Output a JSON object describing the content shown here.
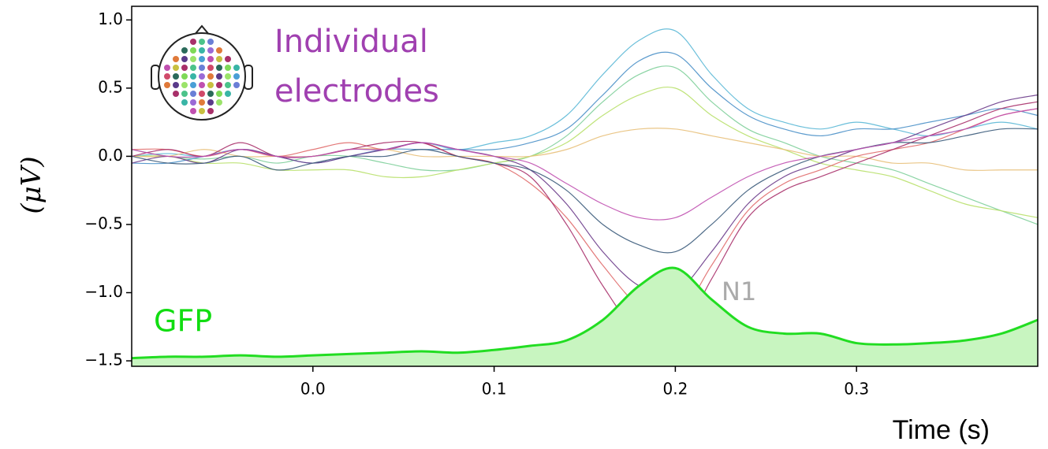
{
  "chart_data": {
    "type": "line",
    "ylabel": "(μV)",
    "xlabel": "Time (s)",
    "annotations": {
      "electrodes": [
        "Individual",
        "electrodes"
      ],
      "gfp": "GFP",
      "peak": "N1"
    },
    "xlim": [
      -0.1,
      0.4
    ],
    "ylim": [
      -1.54,
      1.1
    ],
    "xticks": [
      {
        "value": 0.0,
        "label": "0.0"
      },
      0.1,
      0.2,
      0.3
    ],
    "yticks": [
      {
        "value": -1.5,
        "label": "−1.5"
      },
      {
        "value": -1.0,
        "label": "−1.0"
      },
      {
        "value": -0.5,
        "label": "−0.5"
      },
      {
        "value": 0.0,
        "label": "0.0"
      },
      {
        "value": 0.5,
        "label": "0.5"
      },
      {
        "value": 1.0,
        "label": "1.0"
      }
    ],
    "x": [
      -0.1,
      -0.08,
      -0.06,
      -0.04,
      -0.02,
      0,
      0.02,
      0.04,
      0.06,
      0.08,
      0.1,
      0.12,
      0.14,
      0.16,
      0.18,
      0.2,
      0.22,
      0.24,
      0.26,
      0.28,
      0.3,
      0.32,
      0.34,
      0.36,
      0.38,
      0.4
    ],
    "series": [
      {
        "color": "#5bb8d6",
        "values": [
          0,
          0.02,
          0,
          0.05,
          0,
          0,
          0.05,
          0.05,
          0.1,
          0.05,
          0.1,
          0.15,
          0.3,
          0.6,
          0.85,
          0.92,
          0.6,
          0.35,
          0.25,
          0.2,
          0.25,
          0.2,
          0.15,
          0.2,
          0.25,
          0.2
        ]
      },
      {
        "color": "#7ecf9a",
        "values": [
          0.05,
          0,
          -0.02,
          0,
          -0.05,
          0,
          0,
          -0.05,
          -0.1,
          -0.1,
          -0.05,
          0,
          0.15,
          0.4,
          0.6,
          0.65,
          0.4,
          0.2,
          0.1,
          0,
          -0.05,
          -0.1,
          -0.2,
          -0.3,
          -0.4,
          -0.5
        ]
      },
      {
        "color": "#b8e06a",
        "values": [
          0,
          0,
          -0.05,
          -0.05,
          -0.1,
          -0.1,
          -0.1,
          -0.15,
          -0.15,
          -0.1,
          -0.05,
          0,
          0.1,
          0.3,
          0.45,
          0.5,
          0.3,
          0.15,
          0.05,
          -0.05,
          -0.1,
          -0.15,
          -0.25,
          -0.35,
          -0.4,
          -0.45
        ]
      },
      {
        "color": "#4a90c8",
        "values": [
          -0.05,
          -0.05,
          0,
          0.05,
          0,
          -0.05,
          0,
          0.05,
          0.05,
          0.05,
          0.05,
          0.1,
          0.2,
          0.45,
          0.7,
          0.75,
          0.5,
          0.3,
          0.2,
          0.15,
          0.2,
          0.2,
          0.25,
          0.3,
          0.35,
          0.3
        ]
      },
      {
        "color": "#e8c07a",
        "values": [
          0,
          0,
          0.05,
          0,
          0,
          0,
          0.05,
          0.05,
          0,
          0,
          0,
          0,
          0.05,
          0.15,
          0.2,
          0.2,
          0.15,
          0.1,
          0.05,
          0,
          0,
          -0.05,
          -0.05,
          -0.1,
          -0.1,
          -0.1
        ]
      },
      {
        "color": "#e06a6a",
        "values": [
          0.05,
          0.05,
          0,
          0.05,
          0,
          0.05,
          0.1,
          0.05,
          0.1,
          0,
          -0.05,
          -0.2,
          -0.45,
          -0.8,
          -1.1,
          -1.2,
          -0.8,
          -0.4,
          -0.2,
          -0.1,
          0,
          0.05,
          0.1,
          0.2,
          0.3,
          0.35
        ]
      },
      {
        "color": "#a8306a",
        "values": [
          0,
          0.05,
          0,
          0.1,
          0,
          0,
          0.05,
          0.1,
          0.1,
          0,
          -0.05,
          -0.15,
          -0.5,
          -0.95,
          -1.3,
          -1.35,
          -0.9,
          -0.45,
          -0.25,
          -0.15,
          -0.05,
          0.05,
          0.15,
          0.25,
          0.35,
          0.4
        ]
      },
      {
        "color": "#6a3a8a",
        "values": [
          -0.05,
          0,
          -0.05,
          0.05,
          0,
          -0.05,
          0,
          0.05,
          0.1,
          0.05,
          0,
          -0.1,
          -0.35,
          -0.7,
          -0.95,
          -1.0,
          -0.7,
          -0.35,
          -0.15,
          -0.05,
          0.05,
          0.1,
          0.2,
          0.3,
          0.4,
          0.45
        ]
      },
      {
        "color": "#3a5a7a",
        "values": [
          0,
          -0.05,
          -0.05,
          0,
          -0.1,
          -0.05,
          0,
          0,
          0.05,
          0,
          -0.05,
          -0.1,
          -0.25,
          -0.5,
          -0.65,
          -0.7,
          -0.5,
          -0.25,
          -0.1,
          0,
          0.05,
          0.1,
          0.1,
          0.15,
          0.2,
          0.2
        ]
      },
      {
        "color": "#c050b0",
        "values": [
          0.05,
          0,
          0,
          0.05,
          0,
          0,
          0.05,
          0.05,
          0.1,
          0.05,
          0,
          -0.05,
          -0.2,
          -0.35,
          -0.45,
          -0.45,
          -0.3,
          -0.15,
          -0.05,
          0,
          0.05,
          0.1,
          0.15,
          0.2,
          0.3,
          0.35
        ]
      },
      {
        "color": "#22dd22",
        "fill": "#c8f5c0",
        "values": [
          -1.48,
          -1.47,
          -1.47,
          -1.46,
          -1.47,
          -1.46,
          -1.45,
          -1.44,
          -1.43,
          -1.44,
          -1.42,
          -1.39,
          -1.35,
          -1.2,
          -0.95,
          -0.82,
          -1.05,
          -1.25,
          -1.3,
          -1.3,
          -1.37,
          -1.38,
          -1.37,
          -1.35,
          -1.3,
          -1.2
        ]
      }
    ]
  }
}
